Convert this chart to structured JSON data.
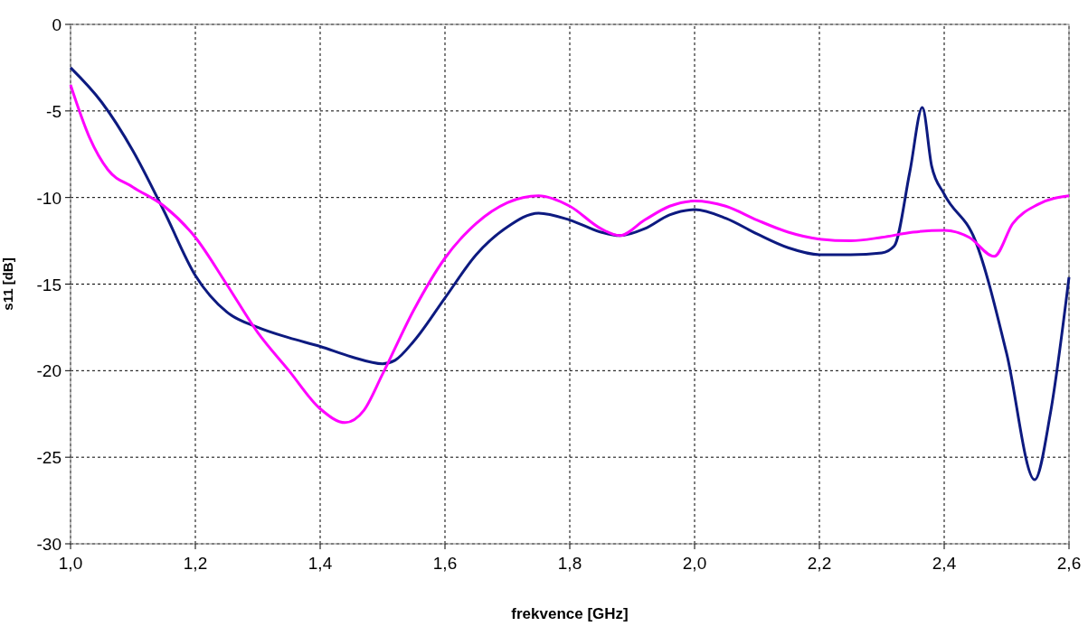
{
  "chart_data": {
    "type": "line",
    "xlabel": "frekvence [GHz]",
    "ylabel": "s11 [dB]",
    "xlim": [
      1.0,
      2.6
    ],
    "ylim": [
      -30,
      0
    ],
    "xticks": [
      {
        "value": 1.0,
        "label": "1,0"
      },
      {
        "value": 1.2,
        "label": "1,2"
      },
      {
        "value": 1.4,
        "label": "1,4"
      },
      {
        "value": 1.6,
        "label": "1,6"
      },
      {
        "value": 1.8,
        "label": "1,8"
      },
      {
        "value": 2.0,
        "label": "2,0"
      },
      {
        "value": 2.2,
        "label": "2,2"
      },
      {
        "value": 2.4,
        "label": "2,4"
      },
      {
        "value": 2.6,
        "label": "2,6"
      }
    ],
    "yticks": [
      0,
      -5,
      -10,
      -15,
      -20,
      -25,
      -30
    ],
    "grid": true,
    "line_style": "solid",
    "series": [
      {
        "color": "#0d1a80",
        "x": [
          1.0,
          1.05,
          1.1,
          1.15,
          1.2,
          1.25,
          1.3,
          1.35,
          1.4,
          1.45,
          1.5,
          1.52,
          1.55,
          1.6,
          1.65,
          1.7,
          1.75,
          1.8,
          1.85,
          1.88,
          1.92,
          1.96,
          2.0,
          2.05,
          2.1,
          2.15,
          2.2,
          2.25,
          2.3,
          2.32,
          2.345,
          2.365,
          2.38,
          2.4,
          2.45,
          2.5,
          2.545,
          2.57,
          2.6
        ],
        "values": [
          -2.5,
          -4.5,
          -7.3,
          -10.8,
          -14.5,
          -16.6,
          -17.5,
          -18.1,
          -18.6,
          -19.2,
          -19.6,
          -19.4,
          -18.3,
          -15.8,
          -13.3,
          -11.7,
          -10.9,
          -11.3,
          -12.0,
          -12.2,
          -11.8,
          -11.0,
          -10.7,
          -11.2,
          -12.1,
          -12.9,
          -13.3,
          -13.3,
          -13.2,
          -12.8,
          -8.5,
          -4.8,
          -8.2,
          -9.8,
          -12.5,
          -19,
          -26.3,
          -22.5,
          -14.6
        ]
      },
      {
        "color": "#ff00ff",
        "x": [
          1.0,
          1.03,
          1.06,
          1.1,
          1.15,
          1.2,
          1.25,
          1.3,
          1.35,
          1.4,
          1.44,
          1.47,
          1.5,
          1.55,
          1.6,
          1.65,
          1.7,
          1.75,
          1.8,
          1.85,
          1.88,
          1.92,
          1.96,
          2.0,
          2.05,
          2.1,
          2.15,
          2.2,
          2.25,
          2.3,
          2.35,
          2.4,
          2.44,
          2.48,
          2.51,
          2.55,
          2.6
        ],
        "values": [
          -3.5,
          -6.5,
          -8.4,
          -9.4,
          -10.5,
          -12.3,
          -15.0,
          -17.8,
          -20.0,
          -22.2,
          -23.0,
          -22.3,
          -20.2,
          -16.5,
          -13.5,
          -11.5,
          -10.3,
          -9.9,
          -10.5,
          -11.8,
          -12.2,
          -11.3,
          -10.5,
          -10.2,
          -10.5,
          -11.3,
          -12.0,
          -12.4,
          -12.5,
          -12.3,
          -12.0,
          -11.9,
          -12.3,
          -13.4,
          -11.5,
          -10.4,
          -9.9
        ]
      }
    ]
  }
}
